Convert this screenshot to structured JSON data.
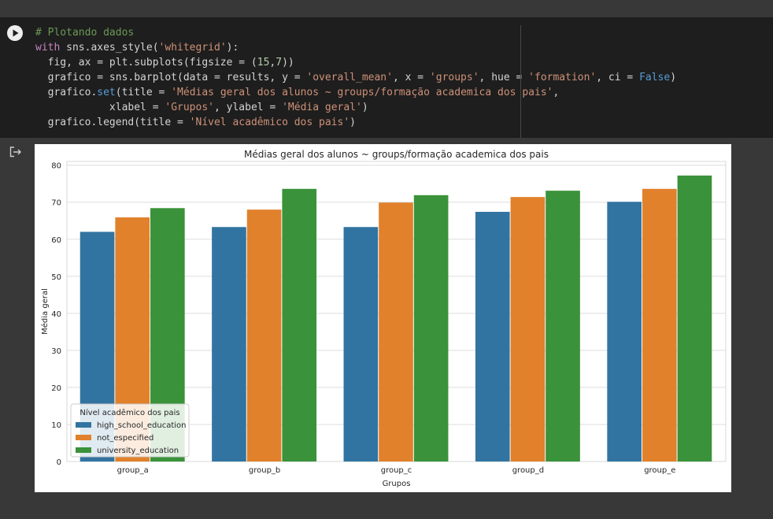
{
  "code_cell": {
    "lines": [
      [
        {
          "t": "# Plotando dados",
          "c": "comment"
        }
      ],
      [
        {
          "t": "with",
          "c": "kw"
        },
        {
          "t": " sns.axes_style(",
          "c": ""
        },
        {
          "t": "'whitegrid'",
          "c": "str"
        },
        {
          "t": "):",
          "c": ""
        }
      ],
      [
        {
          "t": "  fig, ax = plt.subplots(figsize = (",
          "c": ""
        },
        {
          "t": "15",
          "c": "num"
        },
        {
          "t": ",",
          "c": ""
        },
        {
          "t": "7",
          "c": "num"
        },
        {
          "t": "))",
          "c": ""
        }
      ],
      [
        {
          "t": "  grafico = sns.barplot(data = results, y = ",
          "c": ""
        },
        {
          "t": "'overall_mean'",
          "c": "str"
        },
        {
          "t": ", x = ",
          "c": ""
        },
        {
          "t": "'groups'",
          "c": "str"
        },
        {
          "t": ", hue = ",
          "c": ""
        },
        {
          "t": "'formation'",
          "c": "str"
        },
        {
          "t": ", ci = ",
          "c": ""
        },
        {
          "t": "False",
          "c": "const"
        },
        {
          "t": ")",
          "c": ""
        }
      ],
      [
        {
          "t": "  grafico.",
          "c": ""
        },
        {
          "t": "set",
          "c": "const"
        },
        {
          "t": "(title = ",
          "c": ""
        },
        {
          "t": "'Médias geral dos alunos ~ groups/formação academica dos pais'",
          "c": "str"
        },
        {
          "t": ",",
          "c": ""
        }
      ],
      [
        {
          "t": "            xlabel = ",
          "c": ""
        },
        {
          "t": "'Grupos'",
          "c": "str"
        },
        {
          "t": ", ylabel = ",
          "c": ""
        },
        {
          "t": "'Média geral'",
          "c": "str"
        },
        {
          "t": ")",
          "c": ""
        }
      ],
      [
        {
          "t": "  grafico.legend(title = ",
          "c": ""
        },
        {
          "t": "'Nível acadêmico dos pais'",
          "c": "str"
        },
        {
          "t": ")",
          "c": ""
        }
      ]
    ]
  },
  "icons": {
    "run": "play-icon",
    "output": "output-redirect-icon"
  },
  "chart_data": {
    "type": "bar",
    "title": "Médias geral dos alunos ~ groups/formação academica dos pais",
    "xlabel": "Grupos",
    "ylabel": "Média geral",
    "categories": [
      "group_a",
      "group_b",
      "group_c",
      "group_d",
      "group_e"
    ],
    "series": [
      {
        "name": "high_school_education",
        "color": "#3274a1",
        "values": [
          62.0,
          63.3,
          63.3,
          67.4,
          70.1
        ]
      },
      {
        "name": "not_especified",
        "color": "#e1812c",
        "values": [
          65.9,
          68.0,
          69.9,
          71.4,
          73.6
        ]
      },
      {
        "name": "university_education",
        "color": "#3a923a",
        "values": [
          68.4,
          73.6,
          71.9,
          73.1,
          77.2
        ]
      }
    ],
    "ylim": [
      0,
      81
    ],
    "yticks": [
      0,
      10,
      20,
      30,
      40,
      50,
      60,
      70,
      80
    ],
    "grid": true,
    "legend": {
      "title": "Nível acadêmico dos pais",
      "placement": "bottom-left"
    }
  }
}
